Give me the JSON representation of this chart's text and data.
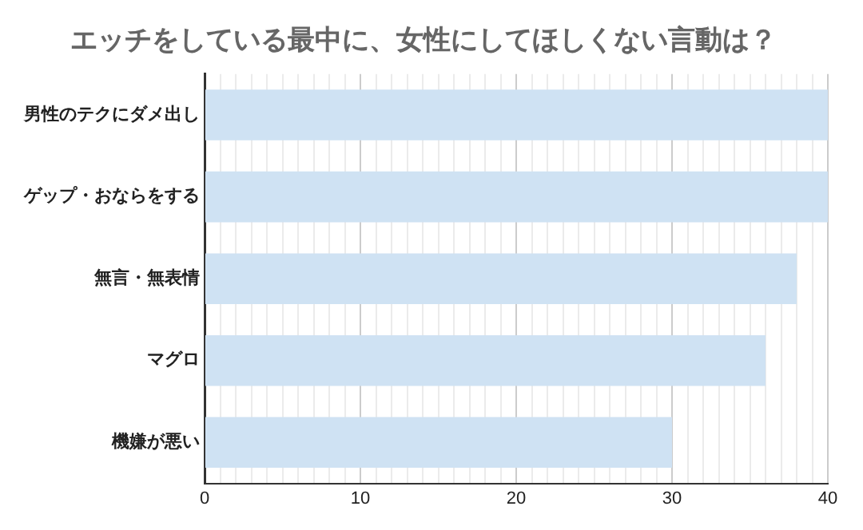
{
  "chart_data": {
    "type": "bar",
    "orientation": "horizontal",
    "title": "エッチをしている最中に、女性にしてほしくない言動は？",
    "categories": [
      "男性のテクにダメ出し",
      "ゲップ・おならをする",
      "無言・無表情",
      "マグロ",
      "機嫌が悪い"
    ],
    "values": [
      40,
      40,
      38,
      36,
      30
    ],
    "color": "#cfe2f3",
    "xlim": [
      0,
      40
    ],
    "xticks": [
      0,
      {
        "value": 1,
        "label": null
      },
      {
        "value": 2,
        "label": null
      },
      {
        "value": 3,
        "label": null
      },
      {
        "value": 4,
        "label": null
      },
      {
        "value": 5,
        "label": null
      },
      {
        "value": 6,
        "label": null
      },
      {
        "value": 7,
        "label": null
      },
      {
        "value": 8,
        "label": null
      },
      {
        "value": 9,
        "label": null
      },
      10,
      {
        "value": 11,
        "label": null
      },
      {
        "value": 12,
        "label": null
      },
      {
        "value": 13,
        "label": null
      },
      {
        "value": 14,
        "label": null
      },
      {
        "value": 15,
        "label": null
      },
      {
        "value": 16,
        "label": null
      },
      {
        "value": 17,
        "label": null
      },
      {
        "value": 18,
        "label": null
      },
      {
        "value": 19,
        "label": null
      },
      20,
      {
        "value": 21,
        "label": null
      },
      {
        "value": 22,
        "label": null
      },
      {
        "value": 23,
        "label": null
      },
      {
        "value": 24,
        "label": null
      },
      {
        "value": 25,
        "label": null
      },
      {
        "value": 26,
        "label": null
      },
      {
        "value": 27,
        "label": null
      },
      {
        "value": 28,
        "label": null
      },
      {
        "value": 29,
        "label": null
      },
      30,
      {
        "value": 31,
        "label": null
      },
      {
        "value": 32,
        "label": null
      },
      {
        "value": 33,
        "label": null
      },
      {
        "value": 34,
        "label": null
      },
      {
        "value": 35,
        "label": null
      },
      {
        "value": 36,
        "label": null
      },
      {
        "value": 37,
        "label": null
      },
      {
        "value": 38,
        "label": null
      },
      {
        "value": 39,
        "label": null
      },
      40
    ],
    "grid": "x",
    "legend": false
  }
}
